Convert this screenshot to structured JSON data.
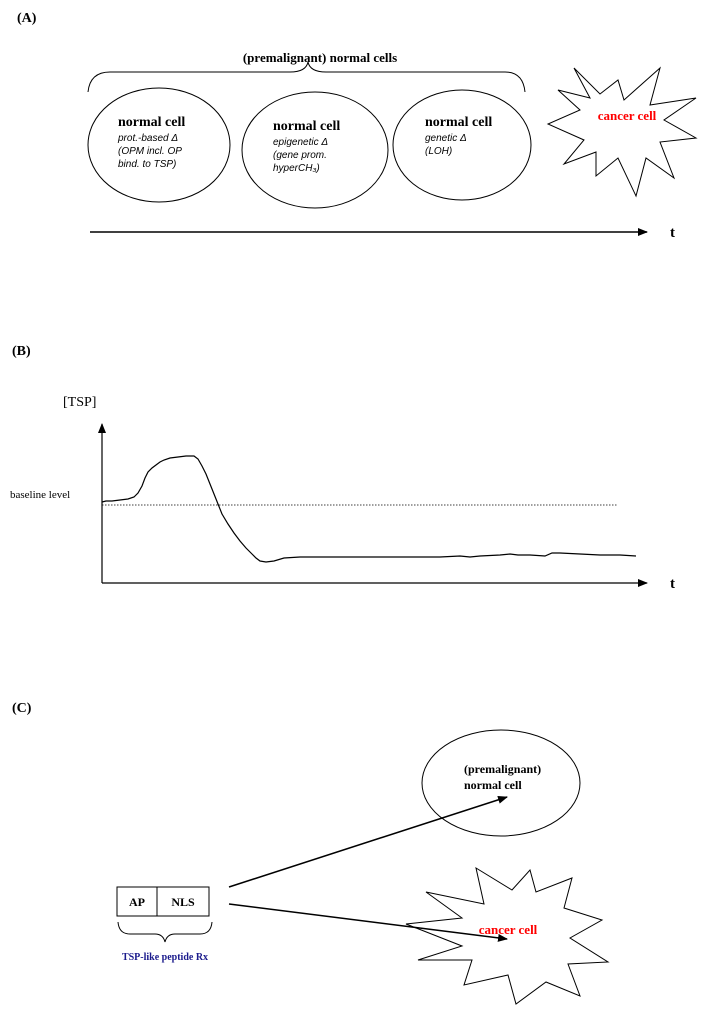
{
  "panel_a": {
    "label": "(A)",
    "brace_label": "(premalignant) normal cells",
    "cells": [
      {
        "title": "normal cell",
        "lines": [
          "prot.-based Δ",
          "(OPM incl. OP",
          "bind. to TSP)"
        ]
      },
      {
        "title": "normal cell",
        "lines": [
          "epigenetic  Δ",
          "(gene prom.",
          "hyperCH₃)"
        ]
      },
      {
        "title": "normal cell",
        "lines": [
          "genetic Δ",
          "(LOH)"
        ]
      }
    ],
    "cancer_label": "cancer cell",
    "axis_label": "t"
  },
  "panel_b": {
    "label": "(B)",
    "y_axis_label": "[TSP]",
    "baseline_label": "baseline level",
    "x_axis_label": "t"
  },
  "panel_c": {
    "label": "(C)",
    "box_left": "AP",
    "box_right": "NLS",
    "brace_label": "TSP-like peptide Rx",
    "target_normal_line1": "(premalignant)",
    "target_normal_line2": "normal cell",
    "target_cancer": "cancer cell"
  },
  "colors": {
    "cancer_text": "#ff0000",
    "peptide_text": "#1a1a8c",
    "line": "#000000"
  }
}
